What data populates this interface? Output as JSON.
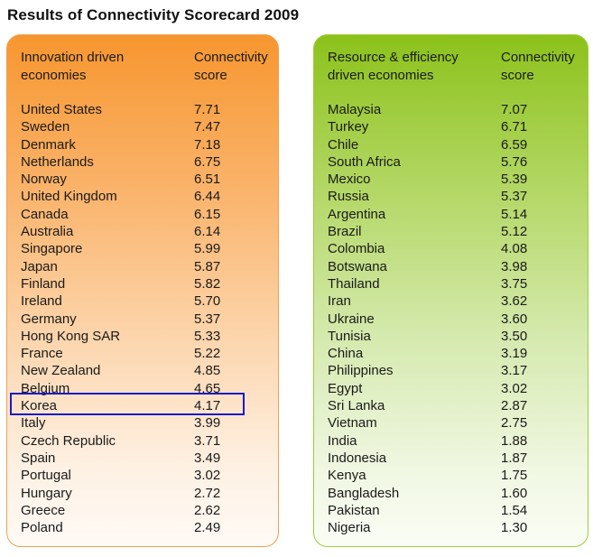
{
  "title": "Results of Connectivity Scorecard 2009",
  "chart_data": {
    "type": "table",
    "title": "Results of Connectivity Scorecard 2009",
    "highlighted_row": "Korea",
    "tables": [
      {
        "group_header": "Innovation driven economies",
        "group_header_lines": [
          "Innovation driven",
          "economies"
        ],
        "score_header": "Connectivity score",
        "score_header_lines": [
          "Connectivity",
          "score"
        ],
        "color": "#f7962f",
        "rows": [
          {
            "country": "United States",
            "score": "7.71"
          },
          {
            "country": "Sweden",
            "score": "7.47"
          },
          {
            "country": "Denmark",
            "score": "7.18"
          },
          {
            "country": "Netherlands",
            "score": "6.75"
          },
          {
            "country": "Norway",
            "score": "6.51"
          },
          {
            "country": "United Kingdom",
            "score": "6.44"
          },
          {
            "country": "Canada",
            "score": "6.15"
          },
          {
            "country": "Australia",
            "score": "6.14"
          },
          {
            "country": "Singapore",
            "score": "5.99"
          },
          {
            "country": "Japan",
            "score": "5.87"
          },
          {
            "country": "Finland",
            "score": "5.82"
          },
          {
            "country": "Ireland",
            "score": "5.70"
          },
          {
            "country": "Germany",
            "score": "5.37"
          },
          {
            "country": "Hong Kong SAR",
            "score": "5.33"
          },
          {
            "country": "France",
            "score": "5.22"
          },
          {
            "country": "New Zealand",
            "score": "4.85"
          },
          {
            "country": "Belgium",
            "score": "4.65"
          },
          {
            "country": "Korea",
            "score": "4.17"
          },
          {
            "country": "Italy",
            "score": "3.99"
          },
          {
            "country": "Czech Republic",
            "score": "3.71"
          },
          {
            "country": "Spain",
            "score": "3.49"
          },
          {
            "country": "Portugal",
            "score": "3.02"
          },
          {
            "country": "Hungary",
            "score": "2.72"
          },
          {
            "country": "Greece",
            "score": "2.62"
          },
          {
            "country": "Poland",
            "score": "2.49"
          }
        ]
      },
      {
        "group_header": "Resource & efficiency driven economies",
        "group_header_lines": [
          "Resource & efficiency",
          "driven economies"
        ],
        "score_header": "Connectivity score",
        "score_header_lines": [
          "Connectivity",
          "score"
        ],
        "color": "#8cc21b",
        "rows": [
          {
            "country": "Malaysia",
            "score": "7.07"
          },
          {
            "country": "Turkey",
            "score": "6.71"
          },
          {
            "country": "Chile",
            "score": "6.59"
          },
          {
            "country": "South Africa",
            "score": "5.76"
          },
          {
            "country": "Mexico",
            "score": "5.39"
          },
          {
            "country": "Russia",
            "score": "5.37"
          },
          {
            "country": "Argentina",
            "score": "5.14"
          },
          {
            "country": "Brazil",
            "score": "5.12"
          },
          {
            "country": "Colombia",
            "score": "4.08"
          },
          {
            "country": "Botswana",
            "score": "3.98"
          },
          {
            "country": "Thailand",
            "score": "3.75"
          },
          {
            "country": "Iran",
            "score": "3.62"
          },
          {
            "country": "Ukraine",
            "score": "3.60"
          },
          {
            "country": "Tunisia",
            "score": "3.50"
          },
          {
            "country": "China",
            "score": "3.19"
          },
          {
            "country": "Philippines",
            "score": "3.17"
          },
          {
            "country": "Egypt",
            "score": "3.02"
          },
          {
            "country": "Sri Lanka",
            "score": "2.87"
          },
          {
            "country": "Vietnam",
            "score": "2.75"
          },
          {
            "country": "India",
            "score": "1.88"
          },
          {
            "country": "Indonesia",
            "score": "1.87"
          },
          {
            "country": "Kenya",
            "score": "1.75"
          },
          {
            "country": "Bangladesh",
            "score": "1.60"
          },
          {
            "country": "Pakistan",
            "score": "1.54"
          },
          {
            "country": "Nigeria",
            "score": "1.30"
          }
        ]
      }
    ]
  }
}
